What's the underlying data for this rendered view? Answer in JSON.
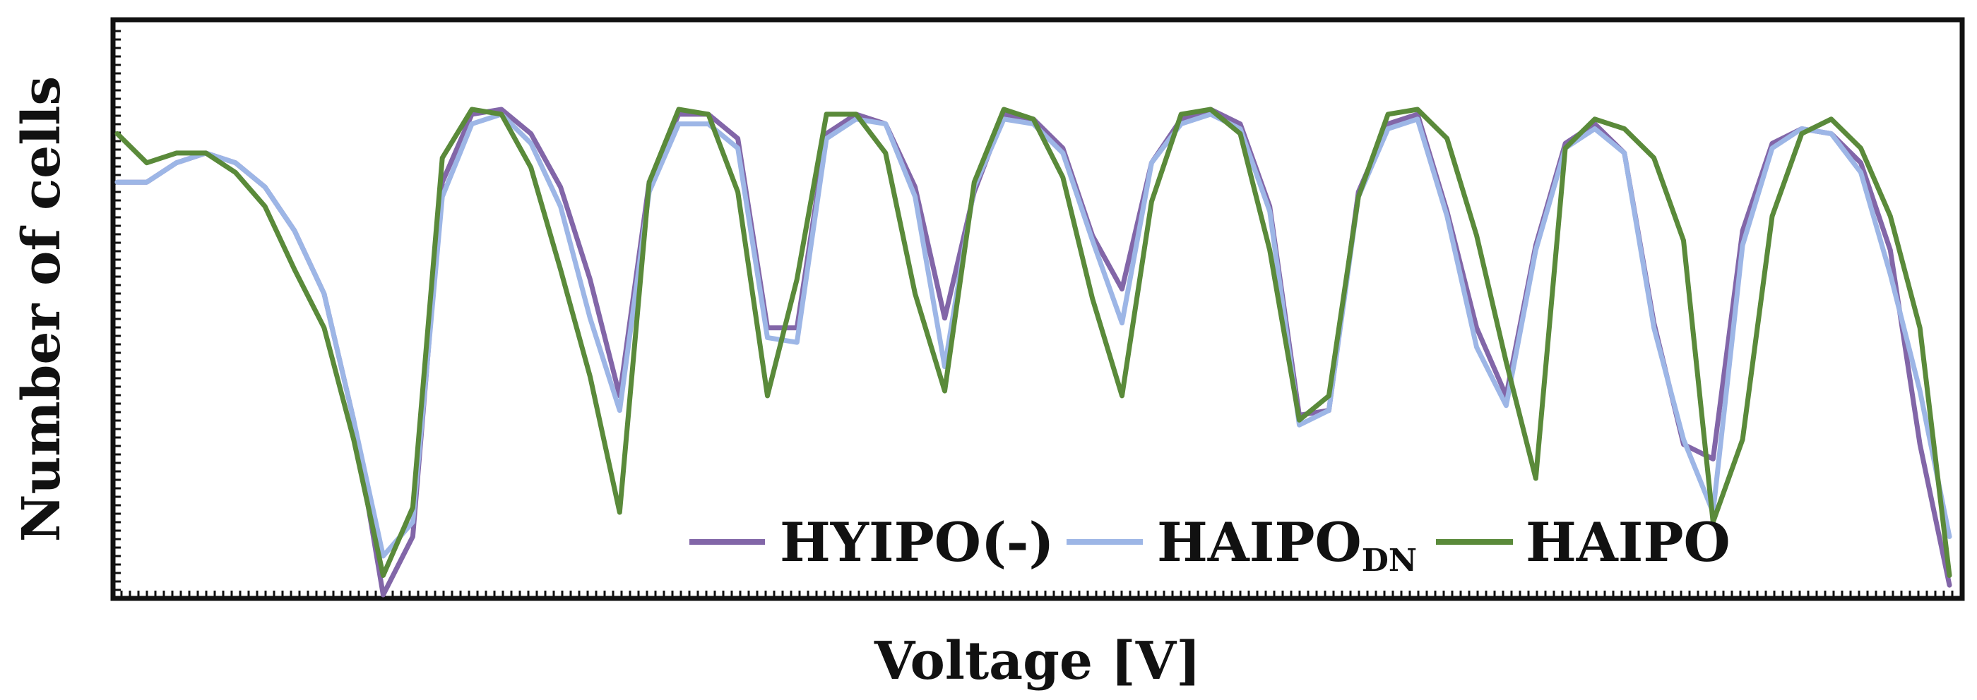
{
  "chart_data": {
    "type": "line",
    "title": "",
    "xlabel": "Voltage [V]",
    "ylabel": "Number of cells",
    "xlim": [
      0,
      64
    ],
    "ylim": [
      0,
      100
    ],
    "x_ticks_labeled": false,
    "y_ticks_labeled": false,
    "grid": false,
    "legend_position": "bottom-right",
    "series": [
      {
        "name": "HYIPO(-)",
        "name_main": "HYIPO(-)",
        "name_sub": "",
        "color": "#8266a8",
        "values": [
          85.0,
          85.0,
          89.0,
          91.0,
          89.0,
          84.0,
          75.0,
          62.0,
          36.0,
          0.0,
          12.0,
          85.0,
          99.0,
          100.0,
          95.0,
          84.0,
          65.0,
          41.0,
          85.0,
          99.0,
          99.0,
          94.0,
          55.0,
          55.0,
          95.0,
          99.0,
          97.0,
          84.0,
          57.0,
          83.0,
          99.0,
          98.0,
          92.0,
          74.0,
          63.0,
          89.0,
          98.0,
          100.0,
          97.0,
          80.0,
          37.0,
          38.0,
          83.0,
          97.0,
          99.0,
          79.0,
          55.0,
          41.0,
          72.0,
          93.0,
          97.0,
          91.0,
          56.0,
          31.0,
          28.0,
          75.0,
          93.0,
          96.0,
          95.0,
          89.0,
          71.0,
          31.0,
          2.0
        ]
      },
      {
        "name": "HAIPODN",
        "name_main": "HAIPO",
        "name_sub": "DN",
        "color": "#9db6e6",
        "values": [
          85.0,
          85.0,
          89.0,
          91.0,
          89.0,
          84.0,
          75.0,
          62.0,
          36.0,
          8.0,
          15.0,
          82.0,
          97.0,
          99.0,
          93.0,
          80.0,
          57.0,
          38.0,
          83.0,
          97.0,
          97.0,
          92.0,
          53.0,
          52.0,
          94.0,
          98.0,
          97.0,
          82.0,
          47.0,
          84.0,
          98.0,
          97.0,
          91.0,
          73.0,
          56.0,
          89.0,
          97.0,
          99.0,
          96.0,
          79.0,
          35.0,
          38.0,
          82.0,
          96.0,
          98.0,
          78.0,
          51.0,
          39.0,
          71.0,
          92.0,
          96.0,
          91.0,
          55.0,
          32.0,
          17.0,
          72.0,
          92.0,
          96.0,
          95.0,
          87.0,
          66.0,
          42.0,
          12.0
        ]
      },
      {
        "name": "HAIPO",
        "name_main": "HAIPO",
        "name_sub": "",
        "color": "#5a8a3a",
        "values": [
          95.0,
          89.0,
          91.0,
          91.0,
          87.0,
          80.0,
          67.0,
          55.0,
          32.0,
          4.0,
          18.0,
          90.0,
          100.0,
          99.0,
          88.0,
          67.0,
          45.0,
          17.0,
          85.0,
          100.0,
          99.0,
          83.0,
          41.0,
          65.0,
          99.0,
          99.0,
          91.0,
          62.0,
          42.0,
          85.0,
          100.0,
          98.0,
          86.0,
          61.0,
          41.0,
          81.0,
          99.0,
          100.0,
          95.0,
          71.0,
          36.0,
          41.0,
          82.0,
          99.0,
          100.0,
          94.0,
          74.0,
          48.0,
          24.0,
          92.0,
          98.0,
          96.0,
          90.0,
          73.0,
          15.0,
          32.0,
          78.0,
          95.0,
          98.0,
          92.0,
          78.0,
          55.0,
          4.0
        ]
      }
    ]
  }
}
